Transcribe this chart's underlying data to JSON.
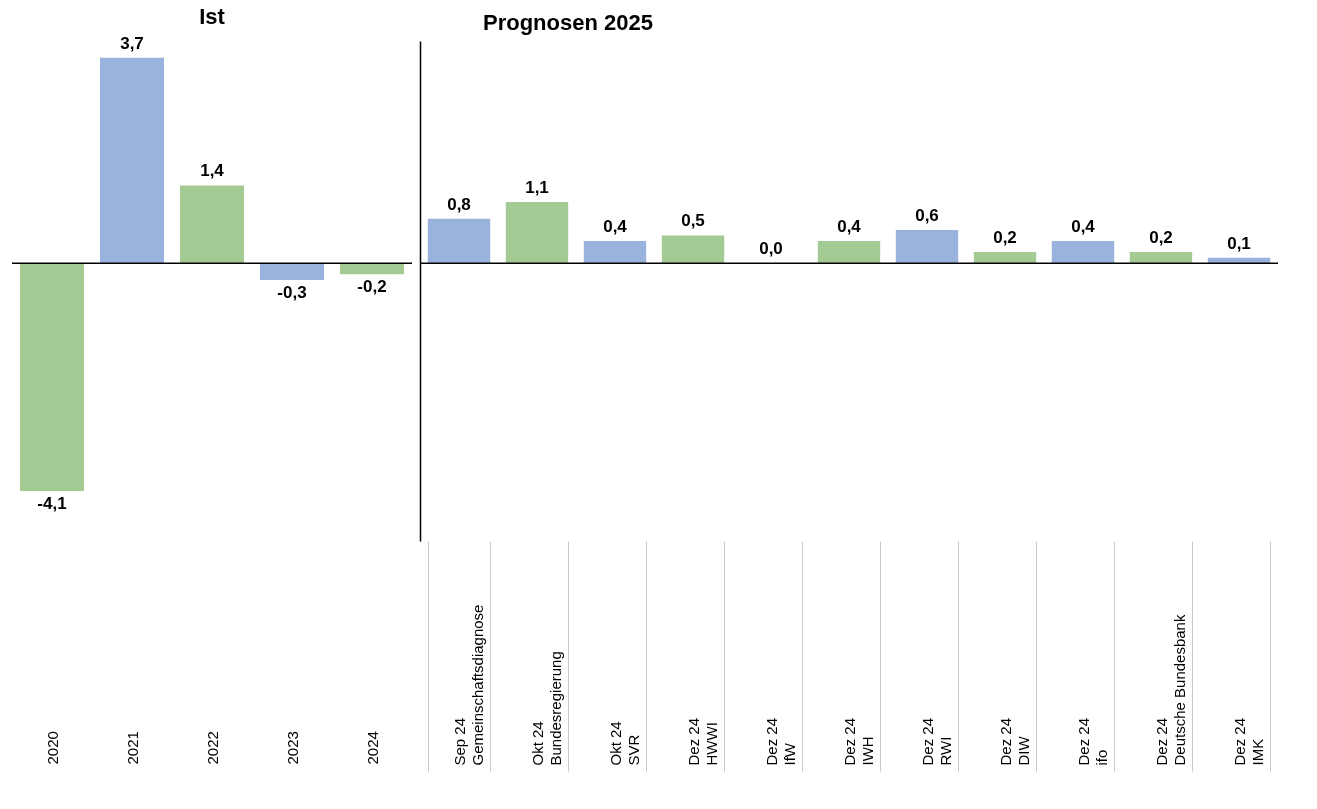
{
  "chart_data": [
    {
      "type": "bar",
      "title": "Ist",
      "categories": [
        "2020",
        "2021",
        "2022",
        "2023",
        "2024"
      ],
      "values": [
        -4.1,
        3.7,
        1.4,
        -0.3,
        -0.2
      ],
      "colors": [
        "#a5cb95",
        "#9ab3dc",
        "#a5cb95",
        "#9ab3dc",
        "#a5cb95"
      ],
      "value_labels": [
        "-4,1",
        "3,7",
        "1,4",
        "-0,3",
        "-0,2"
      ],
      "tick_labels": "x",
      "grid": false,
      "ref_lines": [
        {
          "axis": "y",
          "value": 0,
          "color": "#000000"
        }
      ]
    },
    {
      "type": "bar",
      "title": "Prognosen 2025",
      "categories": [
        "Sep 24\nGemeinschaftsdiagnose",
        "Okt 24\nBundesregierung",
        "Okt 24\nSVR",
        "Dez 24\nHWWI",
        "Dez 24\nIfW",
        "Dez 24\nIWH",
        "Dez 24\nRWI",
        "Dez 24\nDIW",
        "Dez 24\nifo",
        "Dez 24\nDeutsche Bundesbank",
        "Dez 24\nIMK"
      ],
      "values": [
        0.8,
        1.1,
        0.4,
        0.5,
        0.0,
        0.4,
        0.6,
        0.2,
        0.4,
        0.2,
        0.1
      ],
      "colors": [
        "#9ab3dc",
        "#a5cb95",
        "#9ab3dc",
        "#a5cb95",
        "#9ab3dc",
        "#a5cb95",
        "#9ab3dc",
        "#a5cb95",
        "#9ab3dc",
        "#a5cb95",
        "#9ab3dc"
      ],
      "value_labels": [
        "0,8",
        "1,1",
        "0,4",
        "0,5",
        "0,0",
        "0,4",
        "0,6",
        "0,2",
        "0,4",
        "0,2",
        "0,1"
      ],
      "tick_labels": "x",
      "grid": false,
      "ref_lines": [
        {
          "axis": "y",
          "value": 0,
          "color": "#000000"
        }
      ]
    }
  ]
}
